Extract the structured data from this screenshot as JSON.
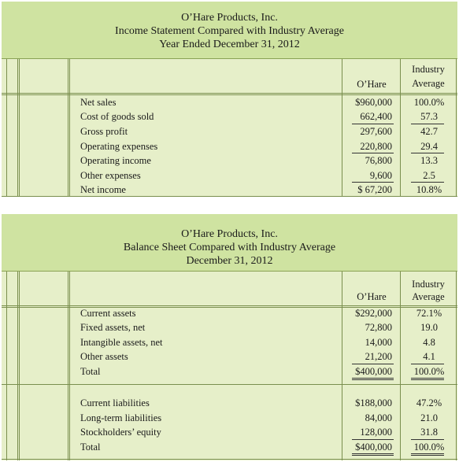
{
  "income_statement": {
    "title_lines": [
      "O’Hare Products, Inc.",
      "Income Statement Compared with Industry Average",
      "Year Ended December 31, 2012"
    ],
    "col_company": "O’Hare",
    "col_industry": [
      "Industry",
      "Average"
    ],
    "rows": [
      {
        "label": "Net sales",
        "company": "$960,000",
        "industry": "100.0%"
      },
      {
        "label": "Cost of goods sold",
        "company": "662,400",
        "industry": "57.3"
      },
      {
        "label": "Gross profit",
        "company": "297,600",
        "industry": "42.7"
      },
      {
        "label": "Operating expenses",
        "company": "220,800",
        "industry": "29.4"
      },
      {
        "label": "Operating income",
        "company": "76,800",
        "industry": "13.3"
      },
      {
        "label": "Other expenses",
        "company": "9,600",
        "industry": "2.5"
      },
      {
        "label": "Net income",
        "company": "$ 67,200",
        "industry": "10.8%"
      }
    ]
  },
  "balance_sheet": {
    "title_lines": [
      "O’Hare Products, Inc.",
      "Balance Sheet Compared with Industry Average",
      "December 31, 2012"
    ],
    "col_company": "O’Hare",
    "col_industry": [
      "Industry",
      "Average"
    ],
    "assets": [
      {
        "label": "Current assets",
        "company": "$292,000",
        "industry": "72.1%"
      },
      {
        "label": "Fixed assets, net",
        "company": "72,800",
        "industry": "19.0"
      },
      {
        "label": "Intangible assets, net",
        "company": "14,000",
        "industry": "4.8"
      },
      {
        "label": "Other assets",
        "company": "21,200",
        "industry": "4.1"
      },
      {
        "label": "Total",
        "company": "$400,000",
        "industry": "100.0%"
      }
    ],
    "liabilities": [
      {
        "label": "Current liabilities",
        "company": "$188,000",
        "industry": "47.2%"
      },
      {
        "label": "Long-term liabilities",
        "company": "84,000",
        "industry": "21.0"
      },
      {
        "label": "Stockholders’ equity",
        "company": "128,000",
        "industry": "31.8"
      },
      {
        "label": "Total",
        "company": "$400,000",
        "industry": "100.0%"
      }
    ]
  }
}
